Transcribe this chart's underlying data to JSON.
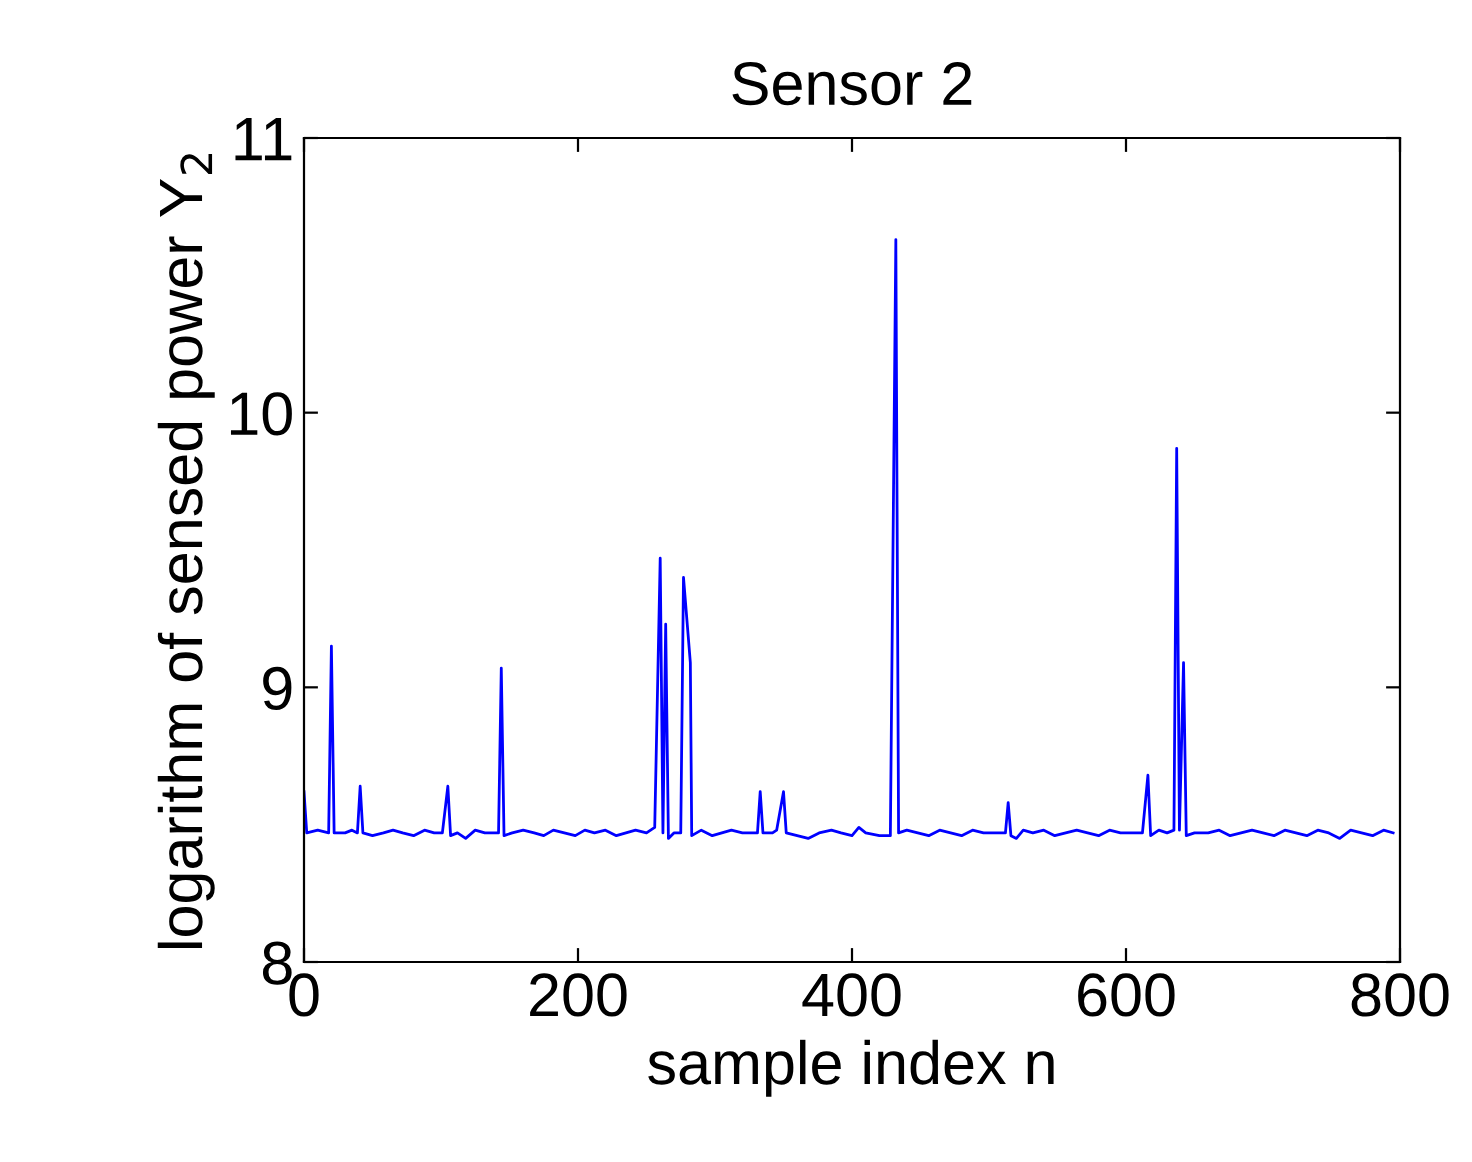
{
  "chart_data": {
    "type": "line",
    "title": "Sensor 2",
    "xlabel": "sample index n",
    "ylabel": "logarithm of sensed power Y$_{2}$",
    "xlim": [
      0,
      800
    ],
    "xticks": [
      0,
      200,
      400,
      600,
      800
    ],
    "ylim": [
      8,
      11
    ],
    "yticks": [
      8,
      9,
      10,
      11
    ],
    "grid": false,
    "marker": "none",
    "line_style": "solid",
    "series": [
      {
        "color": "#0000ff",
        "x": [
          0,
          2,
          10,
          18,
          20,
          22,
          30,
          35,
          39,
          41,
          43,
          50,
          58,
          65,
          72,
          80,
          88,
          95,
          101,
          105,
          107,
          112,
          118,
          125,
          132,
          138,
          142,
          144,
          146,
          152,
          160,
          168,
          175,
          182,
          190,
          198,
          205,
          212,
          220,
          228,
          235,
          242,
          250,
          256,
          260,
          262,
          264,
          266,
          270,
          275,
          277,
          282,
          283,
          290,
          298,
          305,
          312,
          320,
          328,
          331,
          333,
          335,
          342,
          345,
          350,
          352,
          360,
          368,
          376,
          385,
          392,
          400,
          405,
          410,
          420,
          428,
          432,
          434,
          440,
          448,
          456,
          464,
          472,
          480,
          488,
          496,
          505,
          512,
          514,
          516,
          520,
          525,
          532,
          540,
          548,
          556,
          564,
          572,
          580,
          588,
          596,
          604,
          612,
          616,
          618,
          624,
          630,
          635,
          637,
          639,
          642,
          644,
          650,
          660,
          668,
          676,
          684,
          692,
          700,
          708,
          716,
          724,
          732,
          740,
          748,
          756,
          764,
          772,
          780,
          788,
          795
        ],
        "values": [
          8.62,
          8.47,
          8.48,
          8.47,
          9.15,
          8.47,
          8.47,
          8.48,
          8.47,
          8.64,
          8.47,
          8.46,
          8.47,
          8.48,
          8.47,
          8.46,
          8.48,
          8.47,
          8.47,
          8.64,
          8.46,
          8.47,
          8.45,
          8.48,
          8.47,
          8.47,
          8.47,
          9.07,
          8.46,
          8.47,
          8.48,
          8.47,
          8.46,
          8.48,
          8.47,
          8.46,
          8.48,
          8.47,
          8.48,
          8.46,
          8.47,
          8.48,
          8.47,
          8.49,
          9.47,
          8.47,
          9.23,
          8.45,
          8.47,
          8.47,
          9.4,
          9.09,
          8.46,
          8.48,
          8.46,
          8.47,
          8.48,
          8.47,
          8.47,
          8.47,
          8.62,
          8.47,
          8.47,
          8.48,
          8.62,
          8.47,
          8.46,
          8.45,
          8.47,
          8.48,
          8.47,
          8.46,
          8.49,
          8.47,
          8.46,
          8.46,
          10.63,
          8.47,
          8.48,
          8.47,
          8.46,
          8.48,
          8.47,
          8.46,
          8.48,
          8.47,
          8.47,
          8.47,
          8.58,
          8.46,
          8.45,
          8.48,
          8.47,
          8.48,
          8.46,
          8.47,
          8.48,
          8.47,
          8.46,
          8.48,
          8.47,
          8.47,
          8.47,
          8.68,
          8.46,
          8.48,
          8.47,
          8.48,
          9.87,
          8.48,
          9.09,
          8.46,
          8.47,
          8.47,
          8.48,
          8.46,
          8.47,
          8.48,
          8.47,
          8.46,
          8.48,
          8.47,
          8.46,
          8.48,
          8.47,
          8.45,
          8.48,
          8.47,
          8.46,
          8.48,
          8.47
        ]
      }
    ]
  }
}
